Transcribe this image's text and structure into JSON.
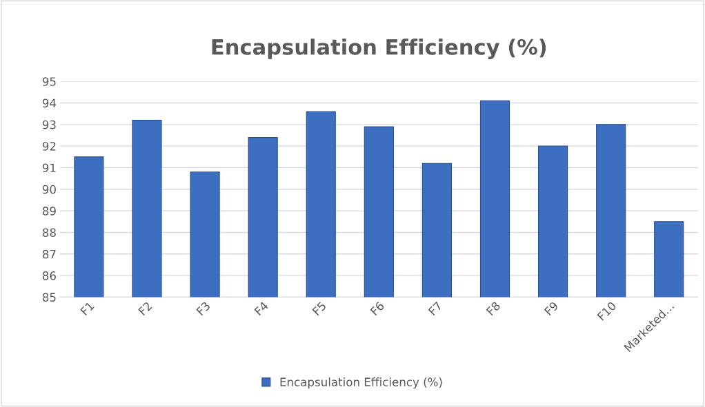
{
  "chart_data": {
    "type": "bar",
    "title": "Encapsulation Efficiency (%)",
    "categories": [
      "F1",
      "F2",
      "F3",
      "F4",
      "F5",
      "F6",
      "F7",
      "F8",
      "F9",
      "F10",
      "Marketed…"
    ],
    "series": [
      {
        "name": "Encapsulation Efficiency (%)",
        "color": "#3d6fc0",
        "values": [
          91.5,
          93.2,
          90.8,
          92.4,
          93.6,
          92.9,
          91.2,
          94.1,
          92.0,
          93.0,
          88.5
        ]
      }
    ],
    "ylim": [
      85,
      95
    ],
    "yticks": [
      85,
      86,
      87,
      88,
      89,
      90,
      91,
      92,
      93,
      94,
      95
    ],
    "grid": "y",
    "legend": "bottom"
  }
}
